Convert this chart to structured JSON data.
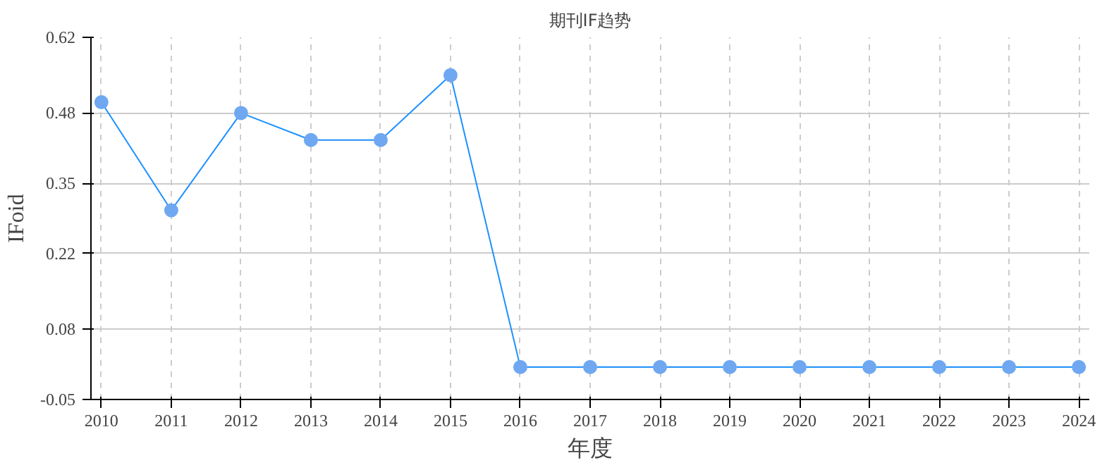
{
  "chart_data": {
    "type": "line",
    "title": "期刊IF趋势",
    "xlabel": "年度",
    "ylabel": "IFoid",
    "categories": [
      "2010",
      "2011",
      "2012",
      "2013",
      "2014",
      "2015",
      "2016",
      "2017",
      "2018",
      "2019",
      "2020",
      "2021",
      "2022",
      "2023",
      "2024"
    ],
    "series": [
      {
        "color": "#1e90ff",
        "values": [
          0.5,
          0.3,
          0.48,
          0.43,
          0.43,
          0.55,
          0.01,
          0.01,
          0.01,
          0.01,
          0.01,
          0.01,
          0.01,
          0.01,
          0.01
        ]
      }
    ],
    "ylim": [
      -0.05,
      0.62
    ],
    "yticks": [
      -0.05,
      0.08,
      0.22,
      0.35,
      0.48,
      0.62
    ],
    "grid": true,
    "marker": "circle",
    "line_style": "solid"
  }
}
